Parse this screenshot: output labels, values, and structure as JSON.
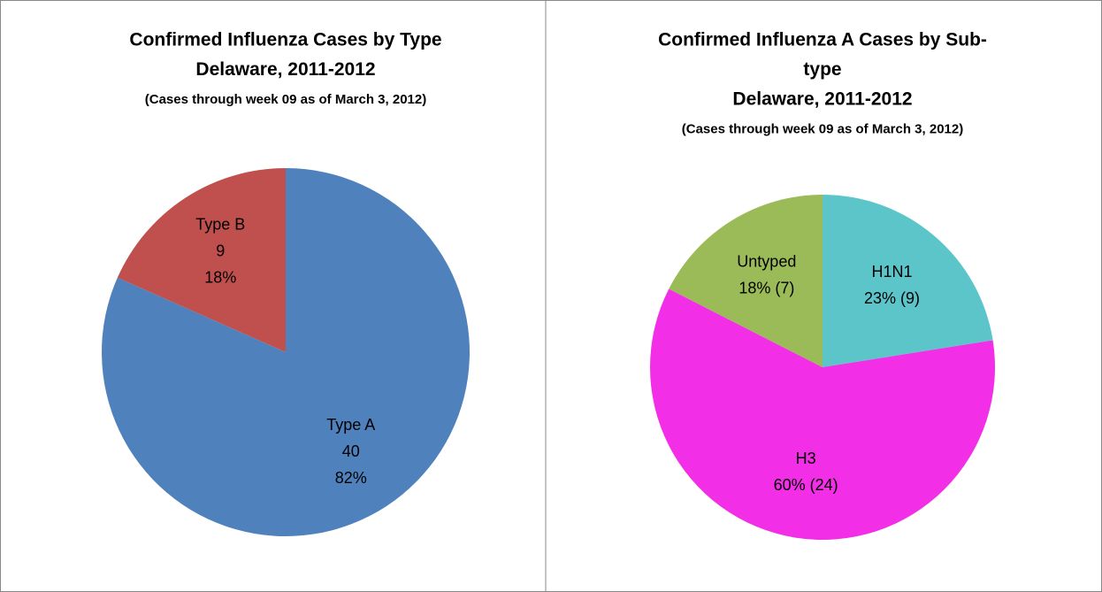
{
  "chart_data": [
    {
      "type": "pie",
      "title": "Confirmed Influenza Cases by Type",
      "title_lines": [
        "Confirmed Influenza Cases by Type",
        "Delaware, 2011-2012"
      ],
      "subtitle": "(Cases through week 09 as of March 3, 2012)",
      "categories": [
        "Type A",
        "Type B"
      ],
      "values": [
        40,
        9
      ],
      "percent_labels": [
        "82%",
        "18%"
      ],
      "colors": [
        "#4f81bd",
        "#c0504d"
      ]
    },
    {
      "type": "pie",
      "title": "Confirmed Influenza  A Cases by Sub-type",
      "title_lines": [
        "Confirmed Influenza  A Cases by Sub-",
        "type",
        "Delaware, 2011-2012"
      ],
      "subtitle": "(Cases through week 09 as of March  3, 2012)",
      "categories": [
        "H1N1",
        "H3",
        "Untyped"
      ],
      "values": [
        9,
        24,
        7
      ],
      "value_labels": [
        "23% (9)",
        "60% (24)",
        "18% (7)"
      ],
      "colors": [
        "#5bc5ca",
        "#f22ee6",
        "#9bbb59"
      ]
    }
  ]
}
